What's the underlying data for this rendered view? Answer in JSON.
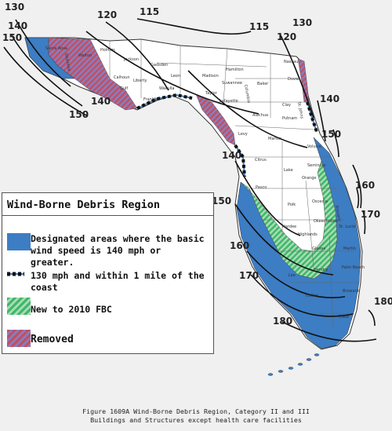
{
  "map": {
    "wind_speed_labels": [
      "130",
      "140",
      "150",
      "150",
      "140",
      "120",
      "115",
      "115",
      "120",
      "130",
      "140",
      "150",
      "140",
      "160",
      "150",
      "170",
      "160",
      "170",
      "180",
      "180"
    ],
    "county_labels": [
      "Santa Rosa",
      "Okaloosa",
      "Walton",
      "Holmes",
      "Jackson",
      "Calhoun",
      "Gadsden",
      "Leon",
      "Madison",
      "Hamilton",
      "Suwannee",
      "Columbia",
      "Baker",
      "Nassau",
      "Duval",
      "Clay",
      "St. Johns",
      "Putnam",
      "Alachua",
      "Levy",
      "Marion",
      "Citrus",
      "Lake",
      "Seminole",
      "Volusia",
      "Orange",
      "Pasco",
      "Polk",
      "Osceola",
      "Brevard",
      "Hardee",
      "Highlands",
      "Okeechobee",
      "St. Lucie",
      "Martin",
      "Palm Beach",
      "Glades",
      "Lee",
      "Hendry",
      "Collier",
      "Broward",
      "Dade",
      "Franklin",
      "Wakulla",
      "Taylor",
      "Lafayette",
      "Gulf",
      "Liberty"
    ],
    "colors": {
      "land": "#ffffff",
      "blue_zone": "#3c7dc4",
      "green_hatch": "#3fb86a",
      "removed_hatch": "#b85870",
      "background": "#f0f0f0"
    }
  },
  "legend": {
    "title": "Wind-Borne Debris Region",
    "items": [
      {
        "text": "Designated areas where the basic wind speed is 140 mph or greater.",
        "icon": "blue-square"
      },
      {
        "text": "130 mph and within 1 mile of the coast",
        "icon": "dashed-line"
      },
      {
        "text": "New to 2010 FBC",
        "icon": "green-hatch"
      },
      {
        "text": "Removed",
        "icon": "red-hatch"
      }
    ]
  },
  "caption": {
    "line1": "Figure 1609A Wind-Borne Debris Region, Category II and III",
    "line2": "Buildings and Structures except health care facilities"
  }
}
